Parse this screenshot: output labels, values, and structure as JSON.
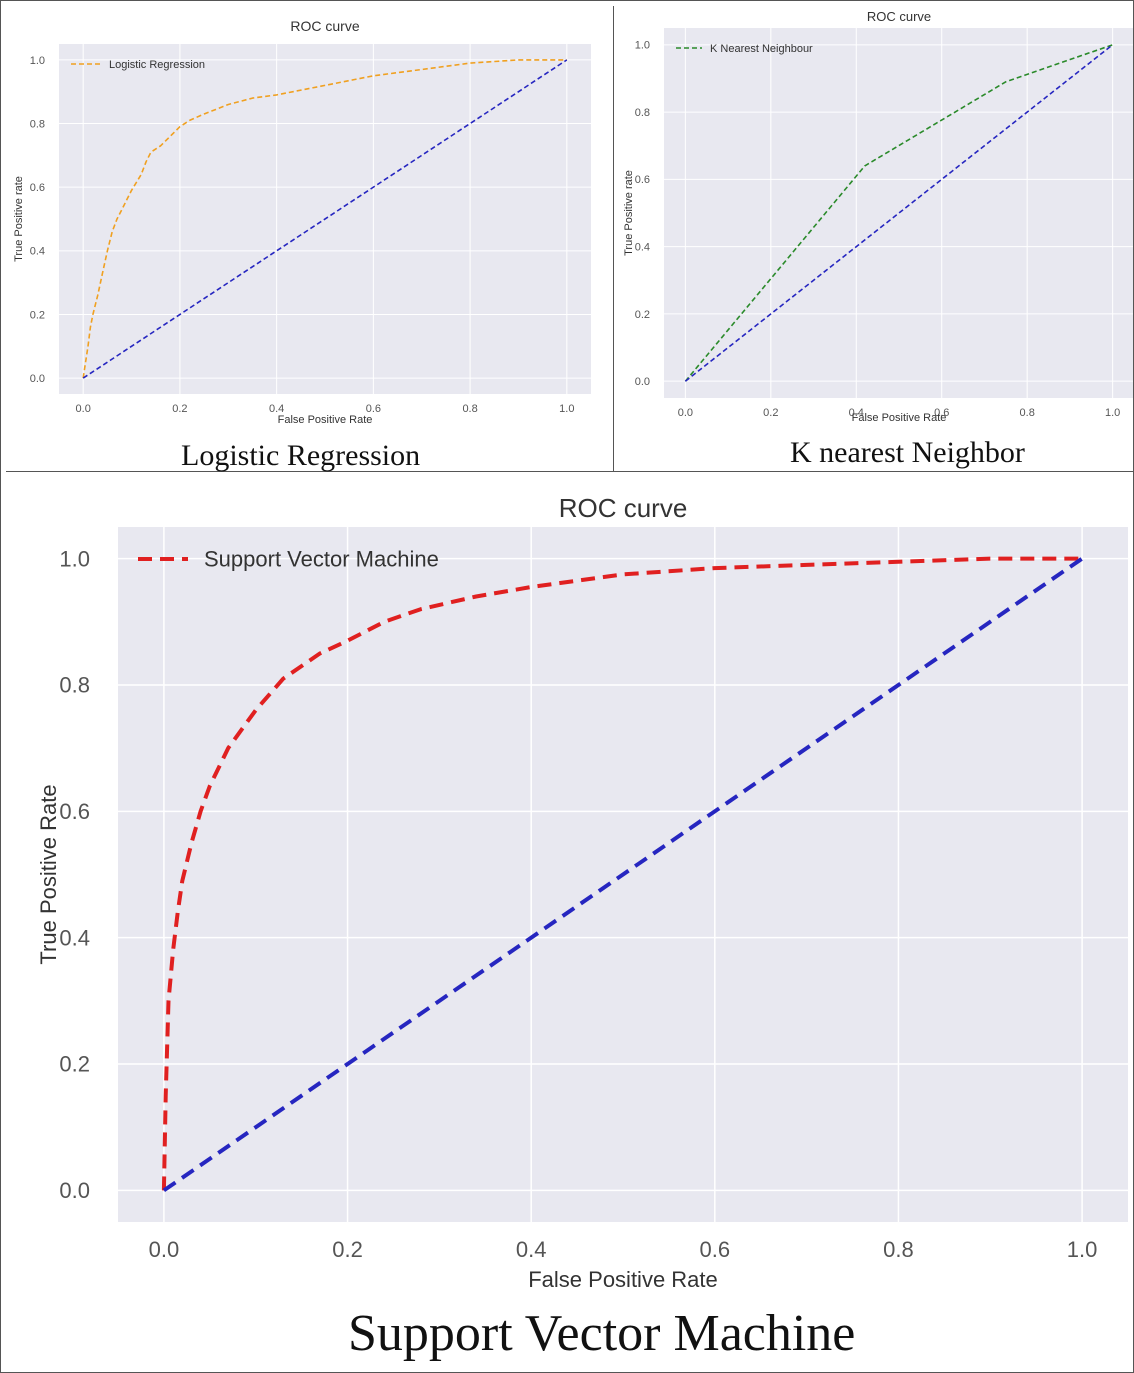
{
  "captions": {
    "lr": "Logistic Regression",
    "knn": "K nearest Neighbor",
    "svm": "Support Vector Machine"
  },
  "colors": {
    "plot_bg": "#e8e8f0",
    "grid": "#ffffff",
    "diagonal": "#2626c0"
  },
  "chart_data": [
    {
      "id": "lr",
      "type": "line",
      "title": "ROC curve",
      "xlabel": "False Positive Rate",
      "ylabel": "True Positive rate",
      "xlim": [
        -0.05,
        1.05
      ],
      "ylim": [
        -0.05,
        1.05
      ],
      "xticks": [
        "0.0",
        "0.2",
        "0.4",
        "0.6",
        "0.8",
        "1.0"
      ],
      "yticks": [
        "0.0",
        "0.2",
        "0.4",
        "0.6",
        "0.8",
        "1.0"
      ],
      "grid": true,
      "legend": "top-left",
      "series": [
        {
          "name": "Logistic Regression",
          "color": "#f0a020",
          "style": "dashed",
          "x": [
            0.0,
            0.003,
            0.01,
            0.015,
            0.02,
            0.03,
            0.04,
            0.05,
            0.06,
            0.07,
            0.08,
            0.09,
            0.1,
            0.12,
            0.13,
            0.14,
            0.16,
            0.18,
            0.2,
            0.22,
            0.25,
            0.3,
            0.35,
            0.4,
            0.5,
            0.6,
            0.7,
            0.8,
            0.9,
            1.0
          ],
          "y": [
            0.0,
            0.03,
            0.1,
            0.16,
            0.2,
            0.26,
            0.33,
            0.4,
            0.46,
            0.5,
            0.53,
            0.56,
            0.59,
            0.64,
            0.68,
            0.71,
            0.73,
            0.76,
            0.79,
            0.81,
            0.83,
            0.86,
            0.88,
            0.89,
            0.92,
            0.95,
            0.97,
            0.99,
            1.0,
            1.0
          ]
        },
        {
          "name": "",
          "color": "#2626c0",
          "style": "dashed",
          "x": [
            0,
            1
          ],
          "y": [
            0,
            1
          ]
        }
      ]
    },
    {
      "id": "knn",
      "type": "line",
      "title": "ROC curve",
      "xlabel": "False Positive Rate",
      "ylabel": "True Positive rate",
      "xlim": [
        -0.05,
        1.05
      ],
      "ylim": [
        -0.05,
        1.05
      ],
      "xticks": [
        "0.0",
        "0.2",
        "0.4",
        "0.6",
        "0.8",
        "1.0"
      ],
      "yticks": [
        "0.0",
        "0.2",
        "0.4",
        "0.6",
        "0.8",
        "1.0"
      ],
      "grid": true,
      "legend": "top-left",
      "series": [
        {
          "name": "K Nearest Neighbour",
          "color": "#2a8a2a",
          "style": "dashed",
          "x": [
            0.0,
            0.42,
            0.75,
            1.0
          ],
          "y": [
            0.0,
            0.64,
            0.89,
            1.0
          ]
        },
        {
          "name": "",
          "color": "#2626c0",
          "style": "dashed",
          "x": [
            0,
            1
          ],
          "y": [
            0,
            1
          ]
        }
      ]
    },
    {
      "id": "svm",
      "type": "line",
      "title": "ROC curve",
      "xlabel": "False Positive Rate",
      "ylabel": "True Positive Rate",
      "xlim": [
        -0.05,
        1.05
      ],
      "ylim": [
        -0.05,
        1.05
      ],
      "xticks": [
        "0.0",
        "0.2",
        "0.4",
        "0.6",
        "0.8",
        "1.0"
      ],
      "yticks": [
        "0.0",
        "0.2",
        "0.4",
        "0.6",
        "0.8",
        "1.0"
      ],
      "grid": true,
      "legend": "top-left",
      "series": [
        {
          "name": "Support Vector Machine",
          "color": "#e02020",
          "style": "dashed",
          "x": [
            0.0,
            0.002,
            0.005,
            0.01,
            0.015,
            0.02,
            0.03,
            0.04,
            0.05,
            0.07,
            0.1,
            0.13,
            0.17,
            0.2,
            0.24,
            0.28,
            0.34,
            0.4,
            0.5,
            0.6,
            0.7,
            0.8,
            0.9,
            1.0
          ],
          "y": [
            0.0,
            0.15,
            0.3,
            0.38,
            0.44,
            0.49,
            0.55,
            0.6,
            0.64,
            0.7,
            0.76,
            0.81,
            0.85,
            0.87,
            0.9,
            0.92,
            0.94,
            0.955,
            0.975,
            0.985,
            0.99,
            0.995,
            1.0,
            1.0
          ]
        },
        {
          "name": "",
          "color": "#2626c0",
          "style": "dashed",
          "x": [
            0,
            1
          ],
          "y": [
            0,
            1
          ]
        }
      ]
    }
  ]
}
